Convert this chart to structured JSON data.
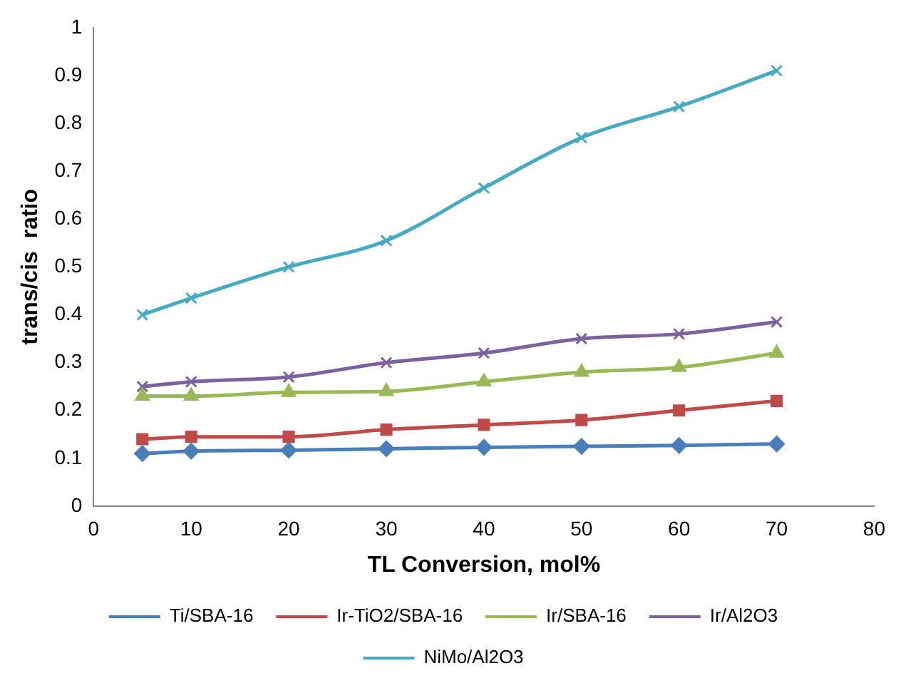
{
  "chart_data": {
    "type": "line",
    "xlabel": "TL Conversion, mol%",
    "ylabel": "trans/cis  ratio",
    "x": [
      5,
      10,
      20,
      30,
      40,
      50,
      60,
      70
    ],
    "xlim": [
      0,
      80
    ],
    "xticks": [
      0,
      10,
      20,
      30,
      40,
      50,
      60,
      70,
      80
    ],
    "ylim": [
      0,
      1
    ],
    "yticks": [
      0,
      0.1,
      0.2,
      0.3,
      0.4,
      0.5,
      0.6,
      0.7,
      0.8,
      0.9,
      1
    ],
    "grid": false,
    "legend": "bottom",
    "series": [
      {
        "name": "Ti/SBA-16",
        "color": "#4a7ebb",
        "marker": "diamond",
        "values": [
          0.11,
          0.115,
          0.117,
          0.12,
          0.123,
          0.125,
          0.127,
          0.13
        ]
      },
      {
        "name": "Ir-TiO2/SBA-16",
        "color": "#be4b48",
        "marker": "square",
        "values": [
          0.14,
          0.145,
          0.145,
          0.16,
          0.17,
          0.18,
          0.2,
          0.22
        ]
      },
      {
        "name": "Ir/SBA-16",
        "color": "#98b954",
        "marker": "triangle",
        "values": [
          0.23,
          0.23,
          0.238,
          0.24,
          0.26,
          0.28,
          0.29,
          0.32
        ]
      },
      {
        "name": "Ir/Al2O3",
        "color": "#7d60a0",
        "marker": "cross",
        "values": [
          0.25,
          0.26,
          0.27,
          0.3,
          0.32,
          0.35,
          0.36,
          0.385
        ]
      },
      {
        "name": "NiMo/Al2O3",
        "color": "#46aac5",
        "marker": "cross",
        "values": [
          0.4,
          0.435,
          0.5,
          0.555,
          0.665,
          0.77,
          0.835,
          0.91
        ]
      }
    ]
  }
}
